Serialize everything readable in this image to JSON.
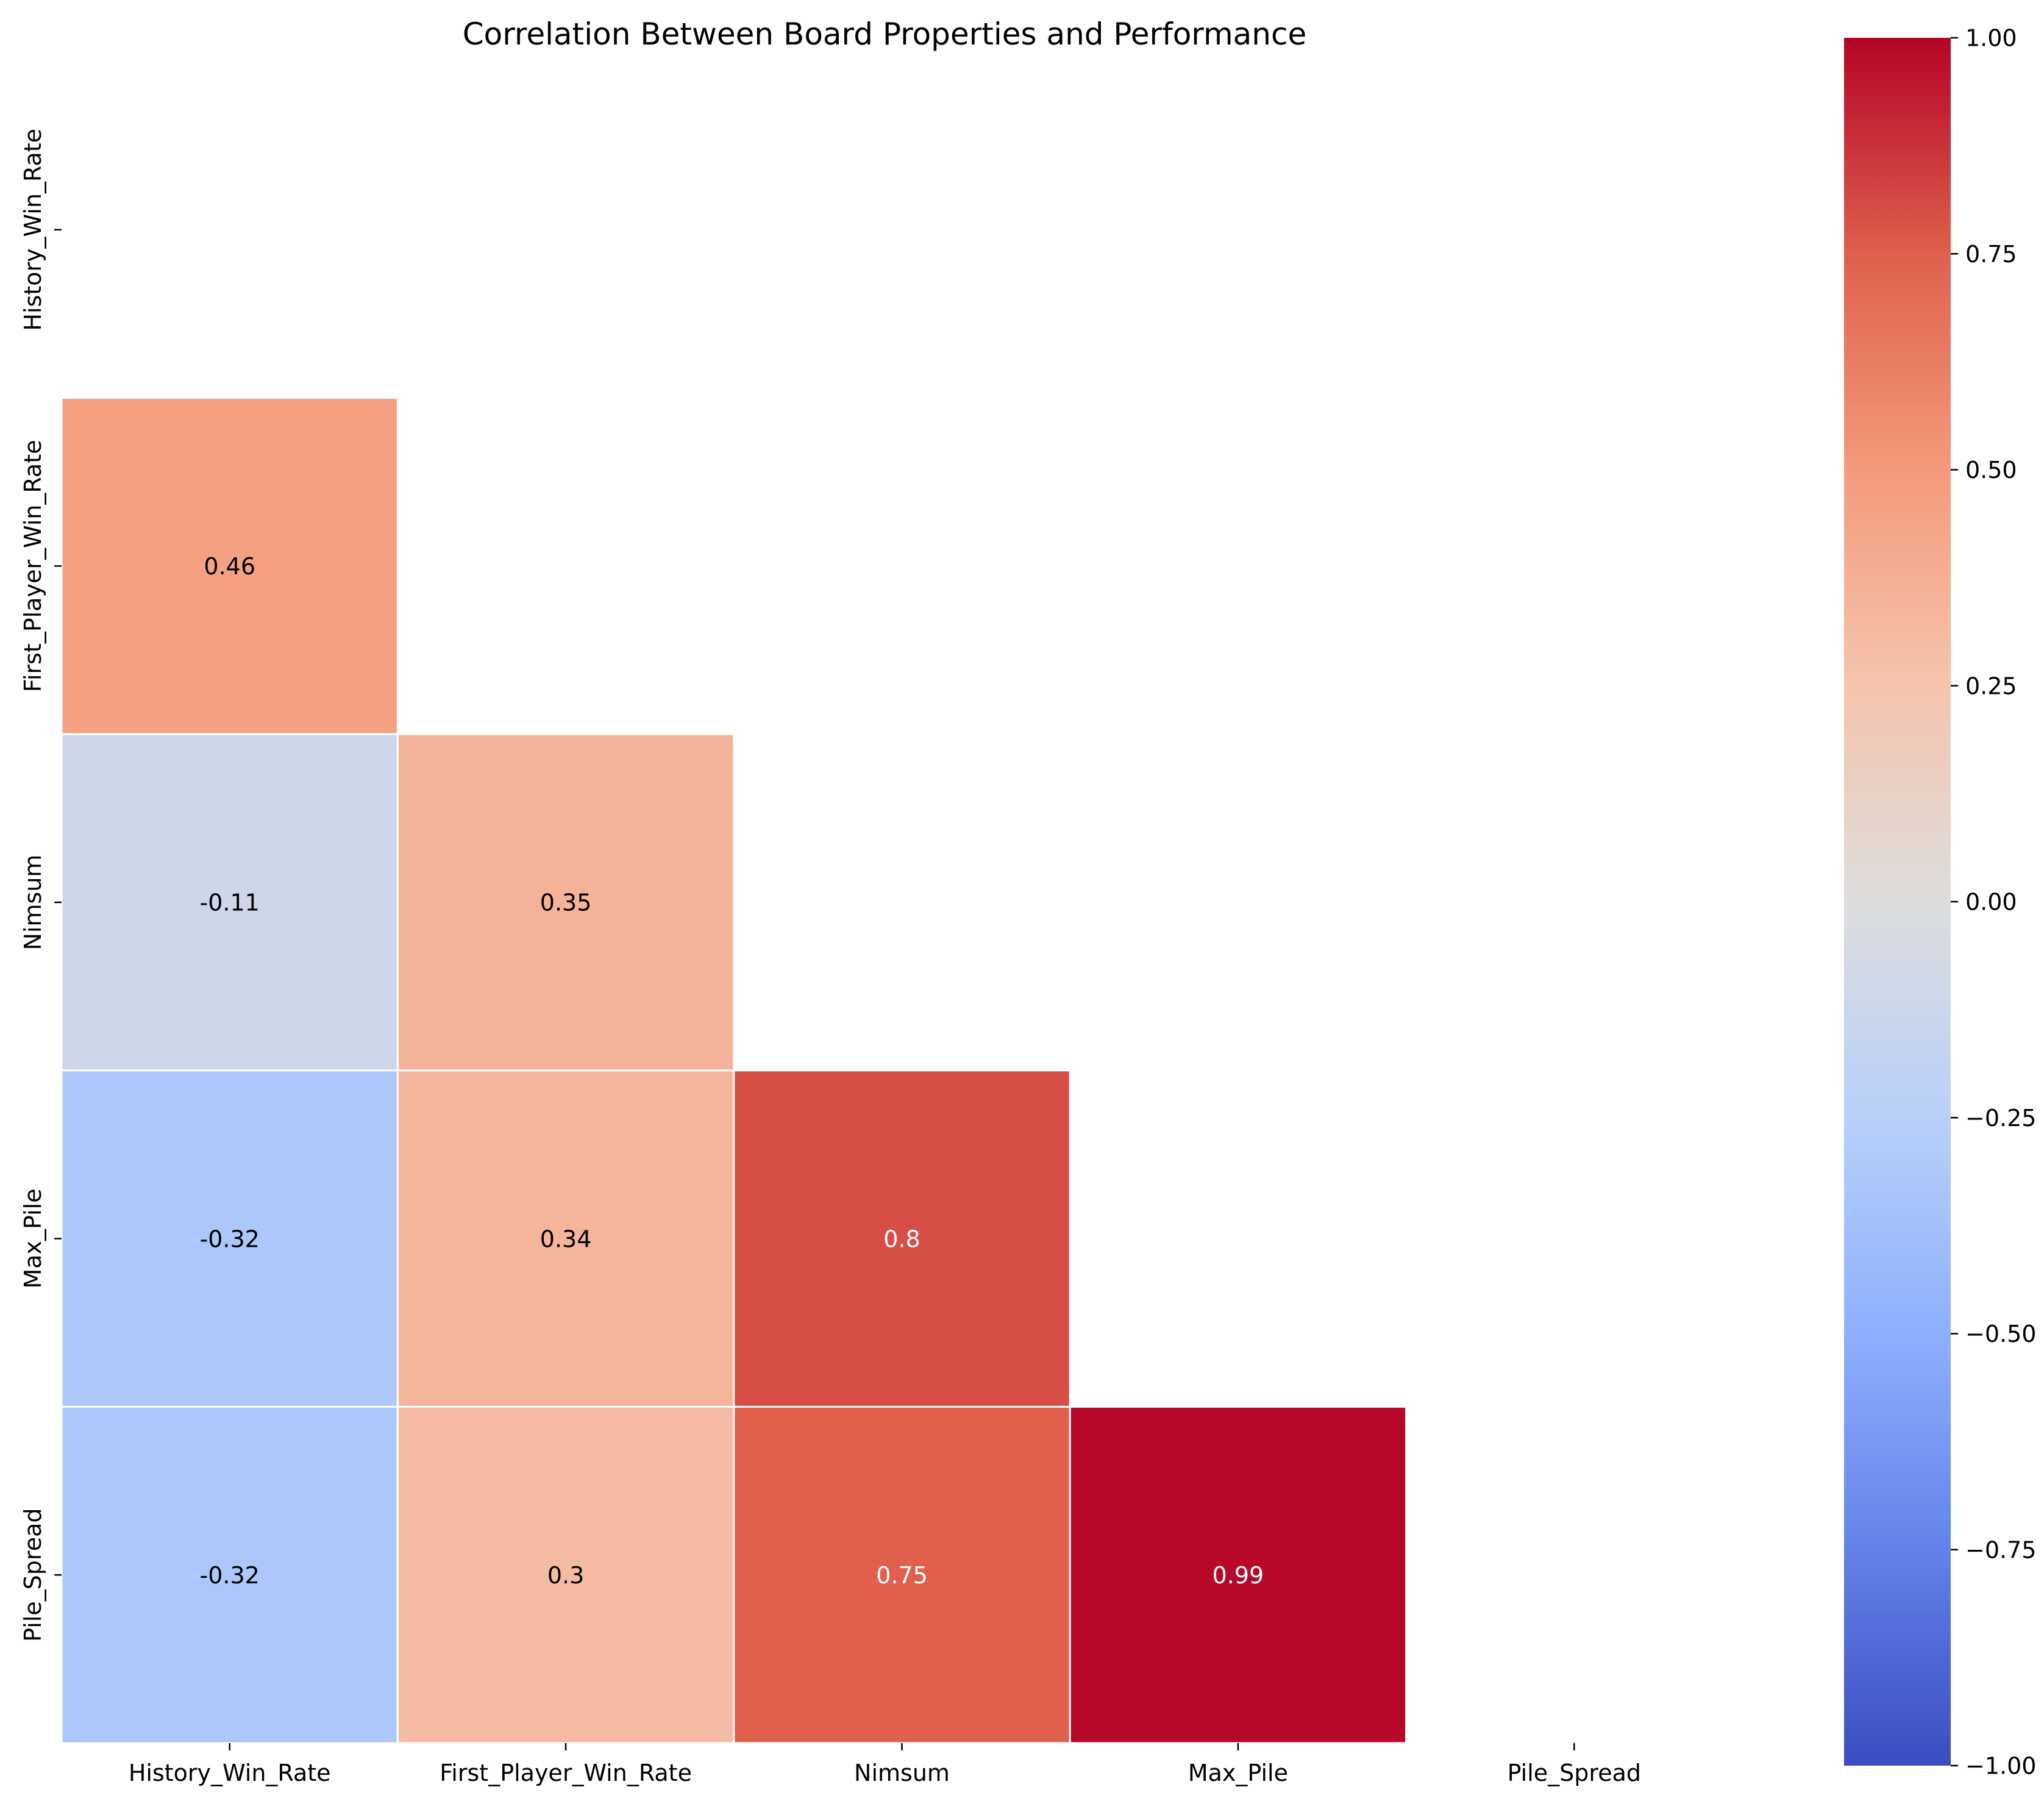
{
  "chart_data": {
    "type": "heatmap",
    "title": "Correlation Between Board Properties and Performance",
    "xlabel": "",
    "ylabel": "",
    "variables": [
      "History_Win_Rate",
      "First_Player_Win_Rate",
      "Nimsum",
      "Max_Pile",
      "Pile_Spread"
    ],
    "mask": "upper-triangle-including-diagonal",
    "cells": [
      {
        "row": 1,
        "col": 0,
        "value": 0.46,
        "label": "0.46"
      },
      {
        "row": 2,
        "col": 0,
        "value": -0.11,
        "label": "-0.11"
      },
      {
        "row": 2,
        "col": 1,
        "value": 0.35,
        "label": "0.35"
      },
      {
        "row": 3,
        "col": 0,
        "value": -0.32,
        "label": "-0.32"
      },
      {
        "row": 3,
        "col": 1,
        "value": 0.34,
        "label": "0.34"
      },
      {
        "row": 3,
        "col": 2,
        "value": 0.8,
        "label": "0.8"
      },
      {
        "row": 4,
        "col": 0,
        "value": -0.32,
        "label": "-0.32"
      },
      {
        "row": 4,
        "col": 1,
        "value": 0.3,
        "label": "0.3"
      },
      {
        "row": 4,
        "col": 2,
        "value": 0.75,
        "label": "0.75"
      },
      {
        "row": 4,
        "col": 3,
        "value": 0.99,
        "label": "0.99"
      }
    ],
    "colorbar": {
      "colormap": "coolwarm",
      "range": [
        -1,
        1
      ],
      "ticks": [
        1.0,
        0.75,
        0.5,
        0.25,
        0.0,
        -0.25,
        -0.5,
        -0.75,
        -1.0
      ],
      "tick_labels": [
        "1.00",
        "0.75",
        "0.50",
        "0.25",
        "0.00",
        "−0.25",
        "−0.50",
        "−0.75",
        "−1.00"
      ]
    },
    "colors": {
      "text_dark": "#000000",
      "text_light": "#ffffff",
      "cell_border": "#ffffff"
    }
  }
}
